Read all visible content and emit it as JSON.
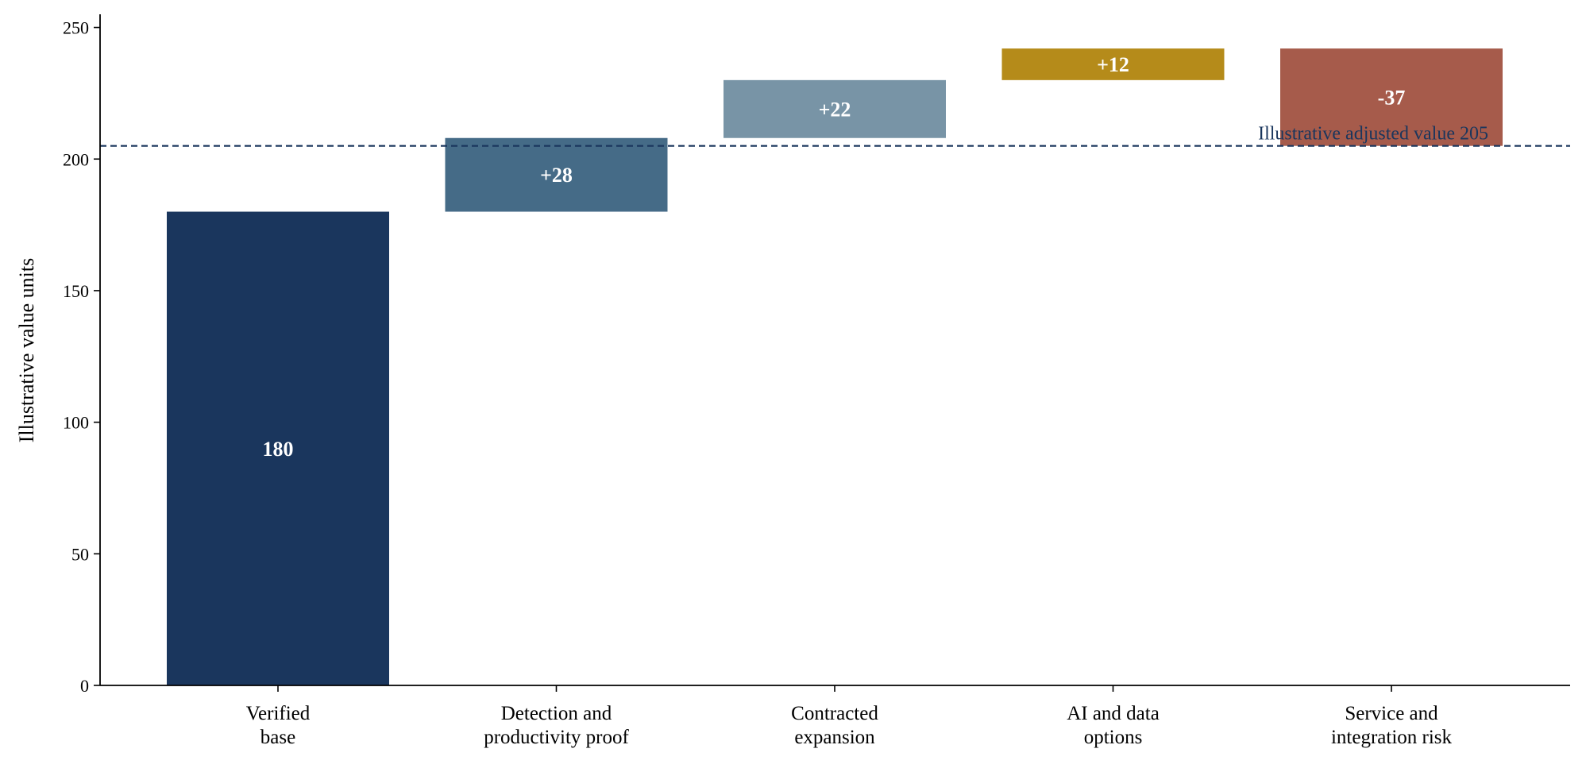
{
  "chart_data": {
    "type": "bar",
    "subtype": "waterfall",
    "title": "",
    "xlabel": "",
    "ylabel": "Illustrative value units",
    "ylim": [
      0,
      255
    ],
    "yticks": [
      0,
      50,
      100,
      150,
      200,
      250
    ],
    "grid": false,
    "legend": "none",
    "categories": [
      [
        "Verified",
        "base"
      ],
      [
        "Detection and",
        "productivity proof"
      ],
      [
        "Contracted",
        "expansion"
      ],
      [
        "AI and data",
        "options"
      ],
      [
        "Service and",
        "integration risk"
      ]
    ],
    "bars": [
      {
        "start": 0,
        "end": 180,
        "label": "180",
        "color": "#1a365d"
      },
      {
        "start": 180,
        "end": 208,
        "label": "+28",
        "color": "#456b87"
      },
      {
        "start": 208,
        "end": 230,
        "label": "+22",
        "color": "#7894a6"
      },
      {
        "start": 230,
        "end": 242,
        "label": "+12",
        "color": "#b58b1a"
      },
      {
        "start": 242,
        "end": 205,
        "label": "-37",
        "color": "#a65b4b"
      }
    ],
    "reference_line": {
      "value": 205,
      "label": "Illustrative adjusted value 205",
      "color": "#1a365d",
      "style": "dashed"
    }
  }
}
